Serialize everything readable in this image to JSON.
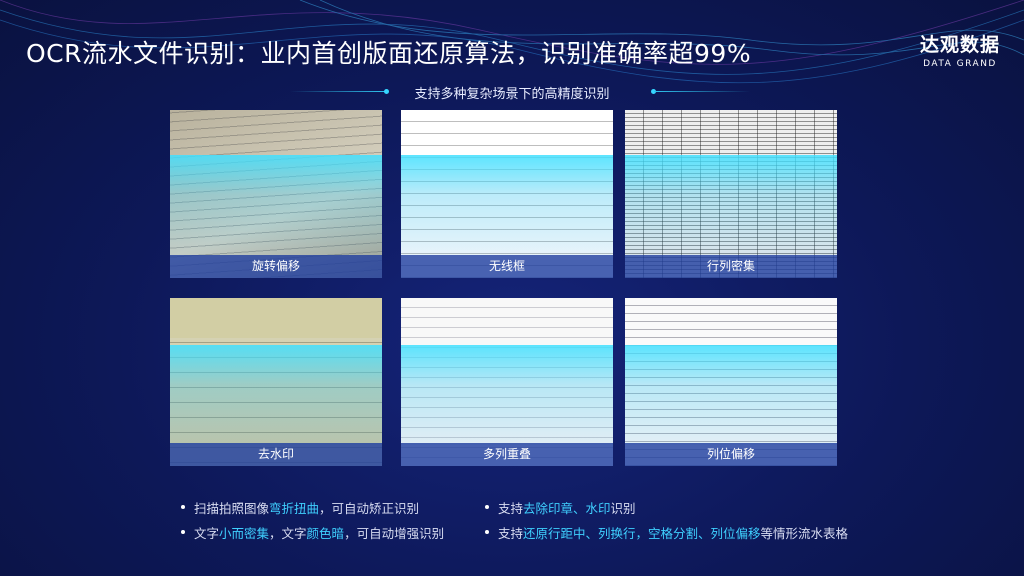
{
  "header": {
    "title": "OCR流水文件识别：业内首创版面还原算法，识别准确率超99%",
    "logo_cn": "达观数据",
    "logo_en": "DATA GRAND"
  },
  "subtitle": "支持多种复杂场景下的高精度识别",
  "cards": [
    {
      "label": "旋转偏移"
    },
    {
      "label": "无线框"
    },
    {
      "label": "行列密集"
    },
    {
      "label": "去水印"
    },
    {
      "label": "多列重叠"
    },
    {
      "label": "列位偏移"
    }
  ],
  "colors": {
    "accent": "#3fd0ff",
    "background": "#0c1650"
  },
  "bullets": {
    "left": [
      {
        "pre": "扫描拍照图像",
        "hl": "弯折扭曲",
        "post": "，可自动矫正识别"
      },
      {
        "pre": "文字",
        "hl": "小而密集",
        "mid": "，文字",
        "hl2": "颜色暗",
        "post": "，可自动增强识别"
      }
    ],
    "right": [
      {
        "pre": "支持",
        "hl": "去除印章、水印",
        "post": "识别"
      },
      {
        "pre": "支持",
        "hl": "还原行距中、列换行，空格分割、列位偏移",
        "post": "等情形流水表格"
      }
    ]
  }
}
